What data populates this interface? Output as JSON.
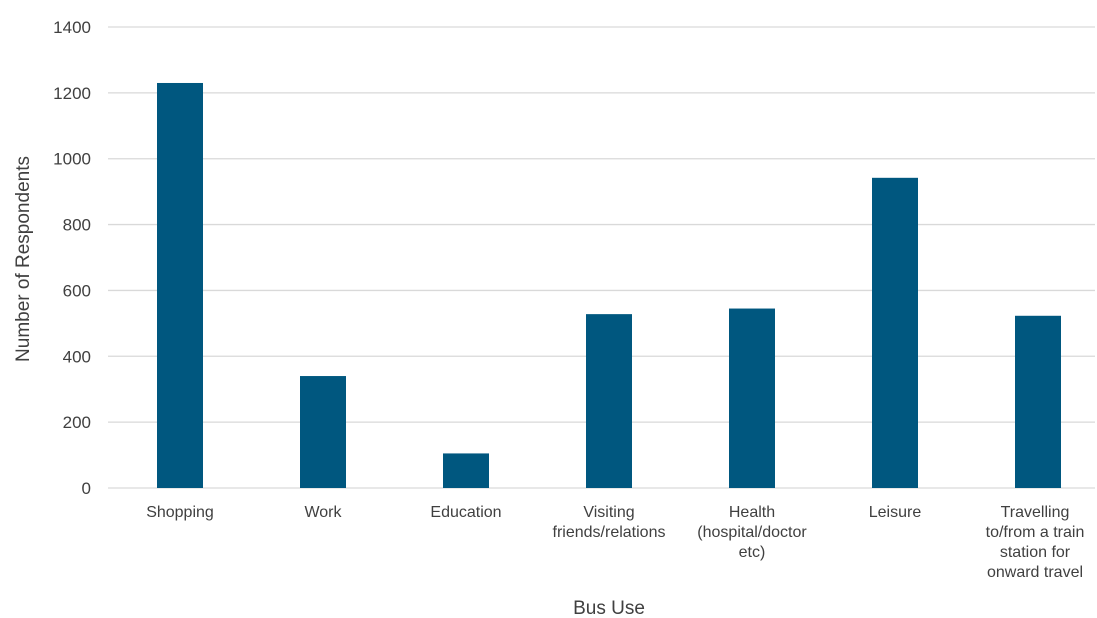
{
  "chart_data": {
    "type": "bar",
    "title": "",
    "xlabel": "Bus Use",
    "ylabel": "Number of  Respondents",
    "ylim": [
      0,
      1400
    ],
    "yticks": [
      0,
      200,
      400,
      600,
      800,
      1000,
      1200,
      1400
    ],
    "grid": true,
    "legend": "none",
    "bar_color": "#00577f",
    "categories": [
      [
        "Shopping"
      ],
      [
        "Work"
      ],
      [
        "Education"
      ],
      [
        "Visiting",
        "friends/relations"
      ],
      [
        "Health",
        "(hospital/doctor",
        "etc)"
      ],
      [
        "Leisure"
      ],
      [
        "Travelling",
        "to/from a train",
        "station for",
        "onward travel"
      ]
    ],
    "values": [
      1230,
      340,
      105,
      528,
      545,
      942,
      523
    ]
  }
}
